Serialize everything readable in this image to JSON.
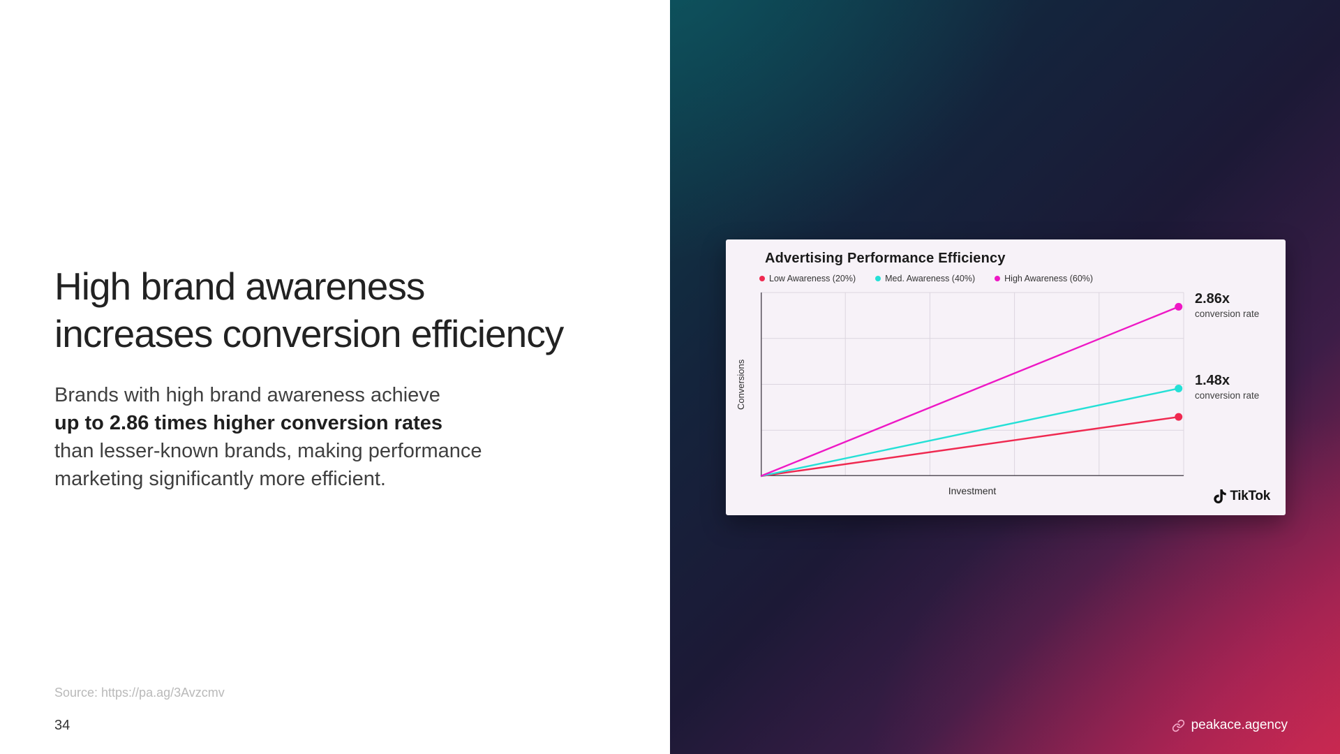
{
  "slide": {
    "heading_line1": "High brand awareness",
    "heading_line2": "increases conversion efficiency",
    "body_lines": [
      "Brands with high brand awareness achieve",
      "up to 2.86 times higher conversion rates",
      "than lesser-known brands, making performance",
      "marketing significantly more efficient."
    ],
    "source": "Source: https://pa.ag/3Avzcmv",
    "page_number": "34",
    "footer_link": "peakace.agency"
  },
  "card": {
    "title": "Advertising Performance Efficiency",
    "ylabel": "Conversions",
    "xlabel": "Investment",
    "brand": "TikTok",
    "annotations": [
      {
        "value": "2.86x",
        "label": "conversion rate"
      },
      {
        "value": "1.48x",
        "label": "conversion rate"
      }
    ]
  },
  "chart_data": {
    "type": "line",
    "title": "Advertising Performance Efficiency",
    "xlabel": "Investment",
    "ylabel": "Conversions",
    "x": [
      0,
      1
    ],
    "xlim": [
      0,
      1
    ],
    "ylim": [
      0,
      3.1
    ],
    "grid": true,
    "legend_position": "top",
    "series": [
      {
        "name": "Low Awareness (20%)",
        "color": "#ef2950",
        "values": [
          0,
          1.0
        ]
      },
      {
        "name": "Med. Awareness (40%)",
        "color": "#25e0d6",
        "values": [
          0,
          1.48
        ]
      },
      {
        "name": "High Awareness (60%)",
        "color": "#ee18c5",
        "values": [
          0,
          2.86
        ]
      }
    ],
    "annotations": [
      {
        "series": "High Awareness (60%)",
        "text": "2.86x conversion rate"
      },
      {
        "series": "Med. Awareness (40%)",
        "text": "1.48x conversion rate"
      }
    ]
  },
  "colors": {
    "low_awareness": "#ef2950",
    "med_awareness": "#25e0d6",
    "high_awareness": "#ee18c5",
    "card_background": "#f7f2f8",
    "heading_text": "#222222"
  }
}
